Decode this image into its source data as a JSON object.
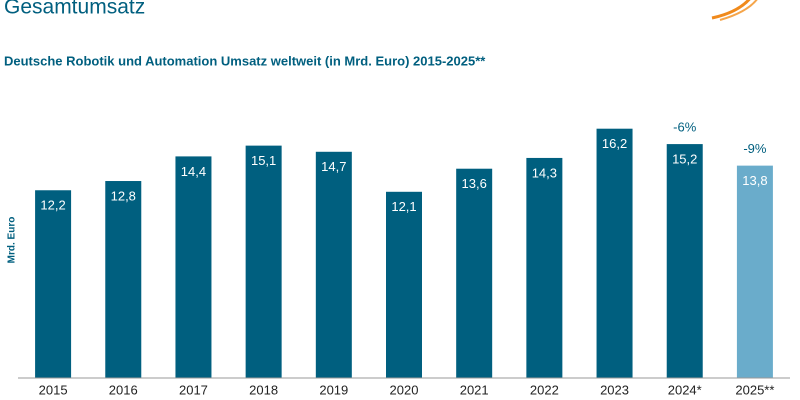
{
  "chart_data": {
    "type": "bar",
    "title": "Gesamtumsatz",
    "subtitle": "Deutsche Robotik und Automation Umsatz weltweit (in Mrd. Euro) 2015-2025**",
    "y_label": "Mrd. Euro",
    "categories": [
      "2015",
      "2016",
      "2017",
      "2018",
      "2019",
      "2020",
      "2021",
      "2022",
      "2023",
      "2024*",
      "2025**"
    ],
    "values": [
      12.2,
      12.8,
      14.4,
      15.1,
      14.7,
      12.1,
      13.6,
      14.3,
      16.2,
      15.2,
      13.8
    ],
    "value_labels": [
      "12,2",
      "12,8",
      "14,4",
      "15,1",
      "14,7",
      "12,1",
      "13,6",
      "14,3",
      "16,2",
      "15,2",
      "13,8"
    ],
    "colors": [
      "#005f7f",
      "#005f7f",
      "#005f7f",
      "#005f7f",
      "#005f7f",
      "#005f7f",
      "#005f7f",
      "#005f7f",
      "#005f7f",
      "#005f7f",
      "#6aaccb"
    ],
    "annotations": [
      {
        "category": "2024*",
        "text": "-6%"
      },
      {
        "category": "2025**",
        "text": "-9%"
      }
    ],
    "ylim": [
      0,
      18
    ]
  }
}
